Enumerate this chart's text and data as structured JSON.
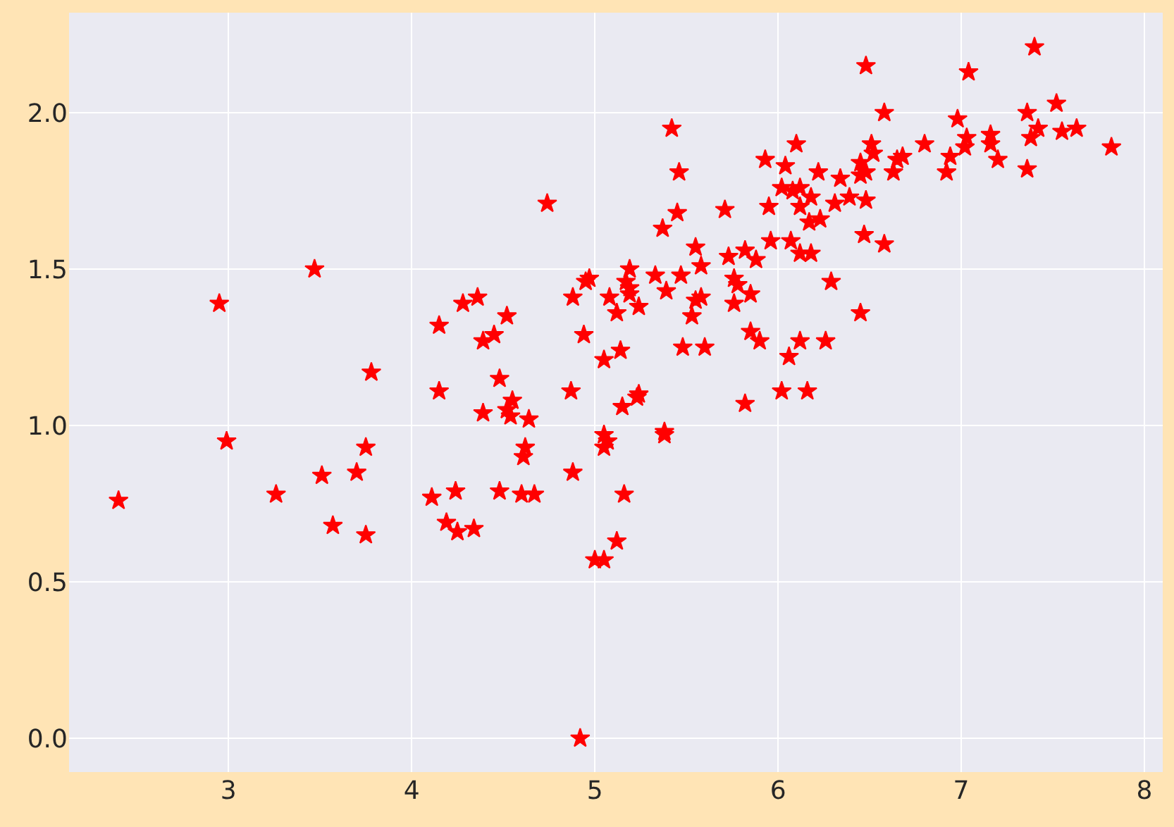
{
  "chart_data": {
    "type": "scatter",
    "marker": "star",
    "grid": true,
    "xlim": [
      2.13,
      8.1
    ],
    "ylim": [
      -0.108,
      2.32
    ],
    "xticks": [
      3,
      4,
      5,
      6,
      7,
      8
    ],
    "yticks": [
      {
        "value": 0,
        "label": "0.0"
      },
      0.5,
      {
        "value": 1,
        "label": "1.0"
      },
      1.5,
      {
        "value": 2,
        "label": "2.0"
      }
    ],
    "series": [
      {
        "color": "#ff0000",
        "x": [
          2.95,
          3.47,
          3.78,
          4.15,
          4.28,
          4.36,
          4.39,
          4.15,
          2.4,
          2.99,
          3.26,
          3.51,
          3.7,
          3.75,
          3.57,
          3.75,
          4.11,
          4.24,
          4.19,
          4.25,
          4.34,
          4.39,
          5.42,
          5.46,
          4.74,
          5.45,
          5.71,
          5.37,
          5.93,
          6.04,
          6.1,
          6.22,
          6.34,
          6.02,
          6.08,
          6.12,
          6.18,
          6.12,
          5.95,
          6.31,
          6.23,
          6.17,
          5.55,
          5.82,
          5.73,
          5.88,
          5.96,
          6.07,
          6.12,
          6.18,
          5.58,
          5.19,
          5.33,
          5.47,
          5.76,
          5.78,
          6.29,
          4.97,
          4.95,
          5.17,
          5.19,
          5.19,
          5.39,
          5.85,
          4.88,
          5.08,
          5.12,
          5.24,
          5.58,
          5.55,
          5.53,
          5.76,
          4.52,
          4.45,
          4.94,
          5.85,
          5.9,
          6.12,
          6.26,
          5.48,
          5.6,
          5.14,
          5.05,
          6.06,
          4.48,
          4.87,
          6.02,
          6.16,
          5.24,
          6.48,
          7.4,
          7.04,
          6.58,
          6.98,
          7.36,
          7.52,
          7.03,
          7.16,
          7.16,
          7.02,
          7.42,
          7.38,
          7.55,
          7.63,
          7.82,
          7.2,
          7.36,
          6.8,
          6.94,
          6.92,
          6.51,
          6.52,
          6.65,
          6.68,
          6.63,
          6.45,
          6.45,
          6.48,
          6.39,
          6.48,
          6.47,
          6.58,
          6.45,
          4.55,
          4.52,
          4.54,
          4.64,
          5.15,
          5.23,
          5.82,
          5.05,
          5.07,
          5.05,
          5.38,
          5.38,
          4.62,
          4.61,
          4.88,
          4.48,
          4.6,
          4.67,
          5.16,
          5.12,
          5.0,
          5.05,
          4.92
        ],
        "values": [
          1.39,
          1.5,
          1.17,
          1.32,
          1.39,
          1.41,
          1.27,
          1.11,
          0.76,
          0.95,
          0.78,
          0.84,
          0.85,
          0.93,
          0.68,
          0.65,
          0.77,
          0.79,
          0.69,
          0.66,
          0.67,
          1.04,
          1.95,
          1.81,
          1.71,
          1.68,
          1.69,
          1.63,
          1.85,
          1.83,
          1.9,
          1.81,
          1.79,
          1.76,
          1.75,
          1.76,
          1.73,
          1.7,
          1.7,
          1.71,
          1.66,
          1.65,
          1.57,
          1.56,
          1.54,
          1.53,
          1.59,
          1.59,
          1.55,
          1.55,
          1.51,
          1.5,
          1.48,
          1.48,
          1.47,
          1.45,
          1.46,
          1.47,
          1.46,
          1.46,
          1.44,
          1.42,
          1.43,
          1.42,
          1.41,
          1.41,
          1.36,
          1.38,
          1.41,
          1.4,
          1.35,
          1.39,
          1.35,
          1.29,
          1.29,
          1.3,
          1.27,
          1.27,
          1.27,
          1.25,
          1.25,
          1.24,
          1.21,
          1.22,
          1.15,
          1.11,
          1.11,
          1.11,
          1.1,
          2.15,
          2.21,
          2.13,
          2.0,
          1.98,
          2.0,
          2.03,
          1.92,
          1.93,
          1.9,
          1.89,
          1.95,
          1.92,
          1.94,
          1.95,
          1.89,
          1.85,
          1.82,
          1.9,
          1.86,
          1.81,
          1.9,
          1.87,
          1.85,
          1.86,
          1.81,
          1.84,
          1.8,
          1.81,
          1.73,
          1.72,
          1.61,
          1.58,
          1.36,
          1.08,
          1.05,
          1.03,
          1.02,
          1.06,
          1.09,
          1.07,
          0.97,
          0.95,
          0.93,
          0.98,
          0.97,
          0.93,
          0.9,
          0.85,
          0.79,
          0.78,
          0.78,
          0.78,
          0.63,
          0.57,
          0.57,
          0.0
        ]
      }
    ]
  }
}
